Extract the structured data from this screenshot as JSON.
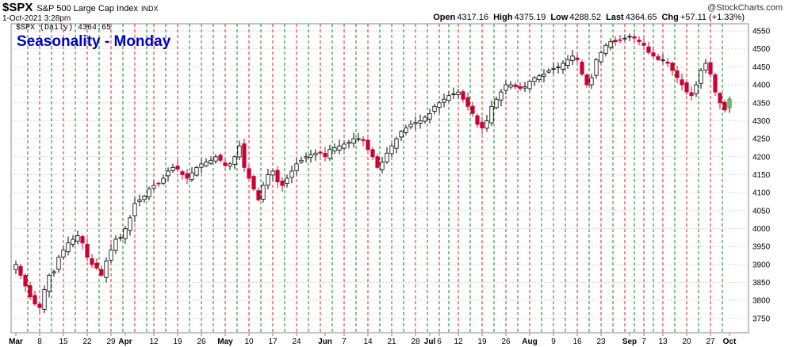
{
  "header": {
    "symbol": "$SPX",
    "description": "S&P 500 Large Cap Index",
    "exchange": "INDX",
    "datetime": "1-Oct-2021 3:28pm",
    "open_label": "Open",
    "open": "4317.16",
    "high_label": "High",
    "high": "4375.19",
    "low_label": "Low",
    "low": "4288.52",
    "last_label": "Last",
    "last": "4364.65",
    "chg_label": "Chg",
    "chg": "+57.11 (+1.33%)",
    "watermark": "@StockCharts.com"
  },
  "legend_label": "$SPX (Daily) 4364.65",
  "chart_data": {
    "type": "candlestick",
    "title": "Seasonality - Monday",
    "ylim": [
      3710,
      4570
    ],
    "y_ticks": [
      3750,
      3800,
      3850,
      3900,
      3950,
      4000,
      4050,
      4100,
      4150,
      4200,
      4250,
      4300,
      4350,
      4400,
      4450,
      4500,
      4550
    ],
    "x_ticks": [
      {
        "label": "Mar",
        "day": 0,
        "month": true
      },
      {
        "label": "8",
        "day": 5
      },
      {
        "label": "15",
        "day": 10
      },
      {
        "label": "22",
        "day": 15
      },
      {
        "label": "29",
        "day": 20
      },
      {
        "label": "Apr",
        "day": 23,
        "month": true
      },
      {
        "label": "12",
        "day": 29
      },
      {
        "label": "19",
        "day": 34
      },
      {
        "label": "26",
        "day": 39
      },
      {
        "label": "May",
        "day": 44,
        "month": true
      },
      {
        "label": "10",
        "day": 49
      },
      {
        "label": "17",
        "day": 54
      },
      {
        "label": "24",
        "day": 59
      },
      {
        "label": "Jun",
        "day": 65,
        "month": true
      },
      {
        "label": "7",
        "day": 69
      },
      {
        "label": "14",
        "day": 74
      },
      {
        "label": "21",
        "day": 79
      },
      {
        "label": "28",
        "day": 84
      },
      {
        "label": "Jul",
        "day": 87,
        "month": true
      },
      {
        "label": "6",
        "day": 89
      },
      {
        "label": "12",
        "day": 93
      },
      {
        "label": "19",
        "day": 98
      },
      {
        "label": "26",
        "day": 103
      },
      {
        "label": "Aug",
        "day": 108,
        "month": true
      },
      {
        "label": "9",
        "day": 113
      },
      {
        "label": "16",
        "day": 118
      },
      {
        "label": "23",
        "day": 123
      },
      {
        "label": "Sep",
        "day": 129,
        "month": true
      },
      {
        "label": "7",
        "day": 132
      },
      {
        "label": "13",
        "day": 136
      },
      {
        "label": "20",
        "day": 141
      },
      {
        "label": "27",
        "day": 146
      },
      {
        "label": "Oct",
        "day": 150,
        "month": true
      }
    ],
    "vlines": [
      {
        "day": 2.5,
        "color": "green"
      },
      {
        "day": 5,
        "color": "red"
      },
      {
        "day": 7.5,
        "color": "green"
      },
      {
        "day": 10,
        "color": "red"
      },
      {
        "day": 12.5,
        "color": "green"
      },
      {
        "day": 15,
        "color": "red"
      },
      {
        "day": 17.5,
        "color": "green"
      },
      {
        "day": 20,
        "color": "red"
      },
      {
        "day": 22.5,
        "color": "green"
      },
      {
        "day": 25,
        "color": "red"
      },
      {
        "day": 27.5,
        "color": "green"
      },
      {
        "day": 29,
        "color": "red"
      },
      {
        "day": 31.5,
        "color": "green"
      },
      {
        "day": 34,
        "color": "red"
      },
      {
        "day": 36.5,
        "color": "green"
      },
      {
        "day": 39,
        "color": "red"
      },
      {
        "day": 41.5,
        "color": "green"
      },
      {
        "day": 44,
        "color": "red"
      },
      {
        "day": 46.5,
        "color": "green"
      },
      {
        "day": 49,
        "color": "red"
      },
      {
        "day": 51.5,
        "color": "green"
      },
      {
        "day": 54,
        "color": "red"
      },
      {
        "day": 56.5,
        "color": "green"
      },
      {
        "day": 59,
        "color": "red"
      },
      {
        "day": 61.5,
        "color": "green"
      },
      {
        "day": 64,
        "color": "red"
      },
      {
        "day": 66.5,
        "color": "green"
      },
      {
        "day": 69,
        "color": "red"
      },
      {
        "day": 71.5,
        "color": "green"
      },
      {
        "day": 74,
        "color": "red"
      },
      {
        "day": 76.5,
        "color": "green"
      },
      {
        "day": 79,
        "color": "red"
      },
      {
        "day": 81.5,
        "color": "green"
      },
      {
        "day": 84,
        "color": "red"
      },
      {
        "day": 86.5,
        "color": "green"
      },
      {
        "day": 89,
        "color": "red"
      },
      {
        "day": 91,
        "color": "green"
      },
      {
        "day": 93,
        "color": "red"
      },
      {
        "day": 95.5,
        "color": "green"
      },
      {
        "day": 98,
        "color": "red"
      },
      {
        "day": 100.5,
        "color": "green"
      },
      {
        "day": 103,
        "color": "red"
      },
      {
        "day": 105.5,
        "color": "green"
      },
      {
        "day": 108,
        "color": "red"
      },
      {
        "day": 110.5,
        "color": "green"
      },
      {
        "day": 113,
        "color": "red"
      },
      {
        "day": 115.5,
        "color": "green"
      },
      {
        "day": 118,
        "color": "red"
      },
      {
        "day": 120.5,
        "color": "green"
      },
      {
        "day": 123,
        "color": "red"
      },
      {
        "day": 125.5,
        "color": "green"
      },
      {
        "day": 128,
        "color": "red"
      },
      {
        "day": 130,
        "color": "green"
      },
      {
        "day": 132,
        "color": "red"
      },
      {
        "day": 134,
        "color": "green"
      },
      {
        "day": 136,
        "color": "red"
      },
      {
        "day": 138.5,
        "color": "green"
      },
      {
        "day": 141,
        "color": "red"
      },
      {
        "day": 143.5,
        "color": "green"
      },
      {
        "day": 146,
        "color": "red"
      },
      {
        "day": 148.5,
        "color": "green"
      }
    ],
    "closes": [
      3900,
      3870,
      3840,
      3810,
      3790,
      3780,
      3830,
      3870,
      3880,
      3920,
      3940,
      3960,
      3970,
      3980,
      3960,
      3920,
      3900,
      3890,
      3870,
      3910,
      3940,
      3970,
      3975,
      4000,
      4030,
      4070,
      4080,
      4090,
      4110,
      4120,
      4125,
      4140,
      4160,
      4170,
      4165,
      4150,
      4140,
      4155,
      4170,
      4180,
      4185,
      4190,
      4200,
      4190,
      4175,
      4180,
      4200,
      4230,
      4170,
      4140,
      4110,
      4080,
      4120,
      4150,
      4160,
      4130,
      4120,
      4140,
      4160,
      4180,
      4190,
      4200,
      4205,
      4210,
      4210,
      4200,
      4220,
      4225,
      4230,
      4235,
      4240,
      4250,
      4250,
      4245,
      4220,
      4200,
      4170,
      4185,
      4210,
      4230,
      4250,
      4270,
      4280,
      4290,
      4295,
      4300,
      4310,
      4320,
      4340,
      4350,
      4360,
      4370,
      4375,
      4380,
      4360,
      4340,
      4320,
      4290,
      4280,
      4300,
      4340,
      4360,
      4380,
      4400,
      4400,
      4395,
      4390,
      4395,
      4410,
      4420,
      4425,
      4430,
      4440,
      4445,
      4450,
      4460,
      4470,
      4480,
      4470,
      4430,
      4400,
      4420,
      4470,
      4490,
      4510,
      4520,
      4520,
      4525,
      4530,
      4535,
      4530,
      4520,
      4510,
      4490,
      4480,
      4470,
      4470,
      4460,
      4440,
      4420,
      4400,
      4380,
      4370,
      4400,
      4440,
      4460,
      4430,
      4380,
      4350,
      4330,
      4360
    ]
  }
}
